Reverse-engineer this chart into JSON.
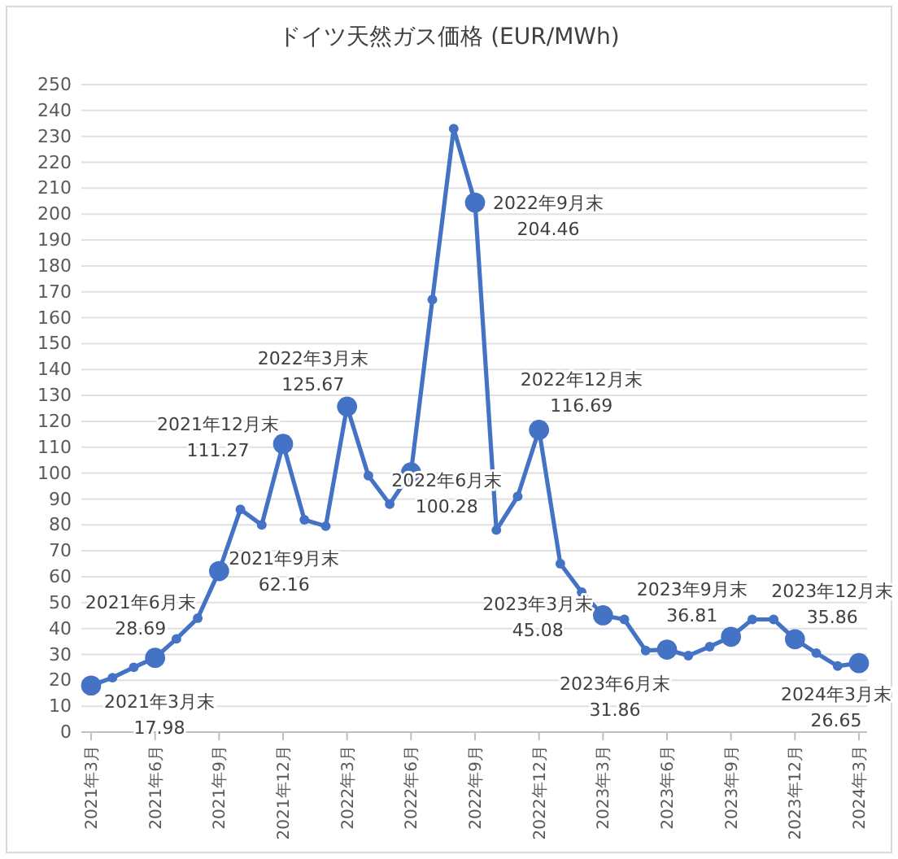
{
  "chart_data": {
    "type": "line",
    "title": "ドイツ天然ガス価格 (EUR/MWh)",
    "categories": [
      "2021年3月",
      null,
      null,
      "2021年6月",
      null,
      null,
      "2021年9月",
      null,
      null,
      "2021年12月",
      null,
      null,
      "2022年3月",
      null,
      null,
      "2022年6月",
      null,
      null,
      "2022年9月",
      null,
      null,
      "2022年12月",
      null,
      null,
      "2023年3月",
      null,
      null,
      "2023年6月",
      null,
      null,
      "2023年9月",
      null,
      null,
      "2023年12月",
      null,
      null,
      "2024年3月"
    ],
    "series": [
      {
        "color": "#4472c4",
        "values": [
          17.98,
          21,
          25,
          28.69,
          36,
          44,
          62.16,
          86,
          80,
          111.27,
          82,
          79.5,
          125.67,
          99,
          88,
          100.28,
          167,
          233,
          204.46,
          78,
          91,
          116.69,
          65,
          54,
          45.08,
          43.5,
          31.5,
          31.86,
          29.5,
          33,
          36.81,
          43.5,
          43.5,
          35.86,
          30.5,
          25.5,
          26.65
        ],
        "value_labels": [
          "17.98",
          null,
          null,
          "28.69",
          null,
          null,
          "62.16",
          null,
          null,
          "111.27",
          null,
          null,
          "125.67",
          null,
          null,
          "100.28",
          null,
          null,
          "204.46",
          null,
          null,
          "116.69",
          null,
          null,
          "45.08",
          null,
          null,
          "31.86",
          null,
          null,
          "36.81",
          null,
          null,
          "35.86",
          null,
          null,
          "26.65"
        ]
      }
    ],
    "annotations": [
      {
        "text": "2021年3月末",
        "x": "2021年3月",
        "y": 17.98
      },
      {
        "text": "2021年6月末",
        "x": "2021年6月",
        "y": 28.69
      },
      {
        "text": "2021年9月末",
        "x": "2021年9月",
        "y": 62.16
      },
      {
        "text": "2021年12月末",
        "x": "2021年12月",
        "y": 111.27
      },
      {
        "text": "2022年3月末",
        "x": "2022年3月",
        "y": 125.67
      },
      {
        "text": "2022年6月末",
        "x": "2022年6月",
        "y": 100.28
      },
      {
        "text": "2022年9月末",
        "x": "2022年9月",
        "y": 204.46
      },
      {
        "text": "2022年12月末",
        "x": "2022年12月",
        "y": 116.69
      },
      {
        "text": "2023年3月末",
        "x": "2023年3月",
        "y": 45.08
      },
      {
        "text": "2023年6月末",
        "x": "2023年6月",
        "y": 31.86
      },
      {
        "text": "2023年9月末",
        "x": "2023年9月",
        "y": 36.81
      },
      {
        "text": "2023年12月末",
        "x": "2023年12月",
        "y": 35.86
      },
      {
        "text": "2024年3月末",
        "x": "2024年3月",
        "y": 26.65
      }
    ],
    "ylim": [
      0,
      250
    ],
    "yticks": [
      0,
      10,
      20,
      30,
      40,
      50,
      60,
      70,
      80,
      90,
      100,
      110,
      120,
      130,
      140,
      150,
      160,
      170,
      180,
      190,
      200,
      210,
      220,
      230,
      240,
      250
    ],
    "grid": "y",
    "marker": "circle",
    "line_style": "solid"
  }
}
